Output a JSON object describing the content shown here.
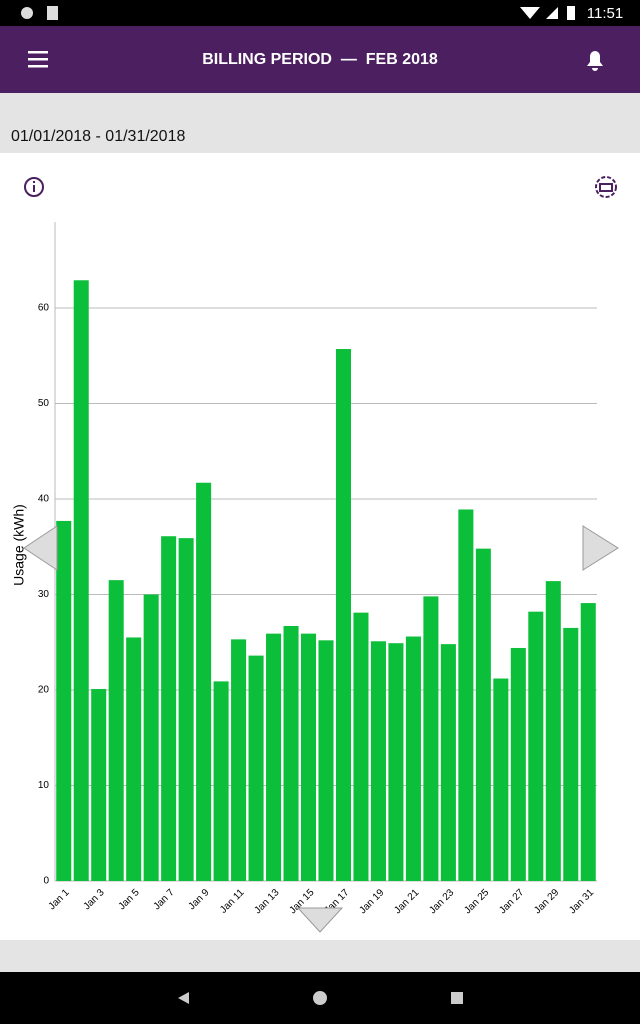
{
  "status_bar": {
    "time": "11:51"
  },
  "app_bar": {
    "title": "BILLING PERIOD  —  FEB 2018"
  },
  "date_range": "01/01/2018 - 01/31/2018",
  "chart_data": {
    "type": "bar",
    "y_label": "Usage (kWh)",
    "color": "#0cbf3a",
    "grid": true,
    "categories": [
      "Jan 1",
      null,
      "Jan 3",
      null,
      "Jan 5",
      null,
      "Jan 7",
      null,
      "Jan 9",
      null,
      "Jan 11",
      null,
      "Jan 13",
      null,
      "Jan 15",
      null,
      "Jan 17",
      null,
      "Jan 19",
      null,
      "Jan 21",
      null,
      "Jan 23",
      null,
      "Jan 25",
      null,
      "Jan 27",
      null,
      "Jan 29",
      null,
      "Jan 31"
    ],
    "values": [
      37.7,
      62.9,
      20.1,
      31.5,
      25.5,
      30.0,
      36.1,
      35.9,
      41.7,
      20.9,
      25.3,
      23.6,
      25.9,
      26.7,
      25.9,
      25.2,
      55.7,
      28.1,
      25.1,
      24.9,
      25.6,
      29.8,
      24.8,
      38.9,
      34.8,
      21.2,
      24.4,
      28.2,
      31.4,
      26.5,
      29.1
    ],
    "ylim": [
      0,
      69
    ],
    "yticks": [
      0,
      10,
      20,
      30,
      40,
      50,
      60
    ]
  }
}
